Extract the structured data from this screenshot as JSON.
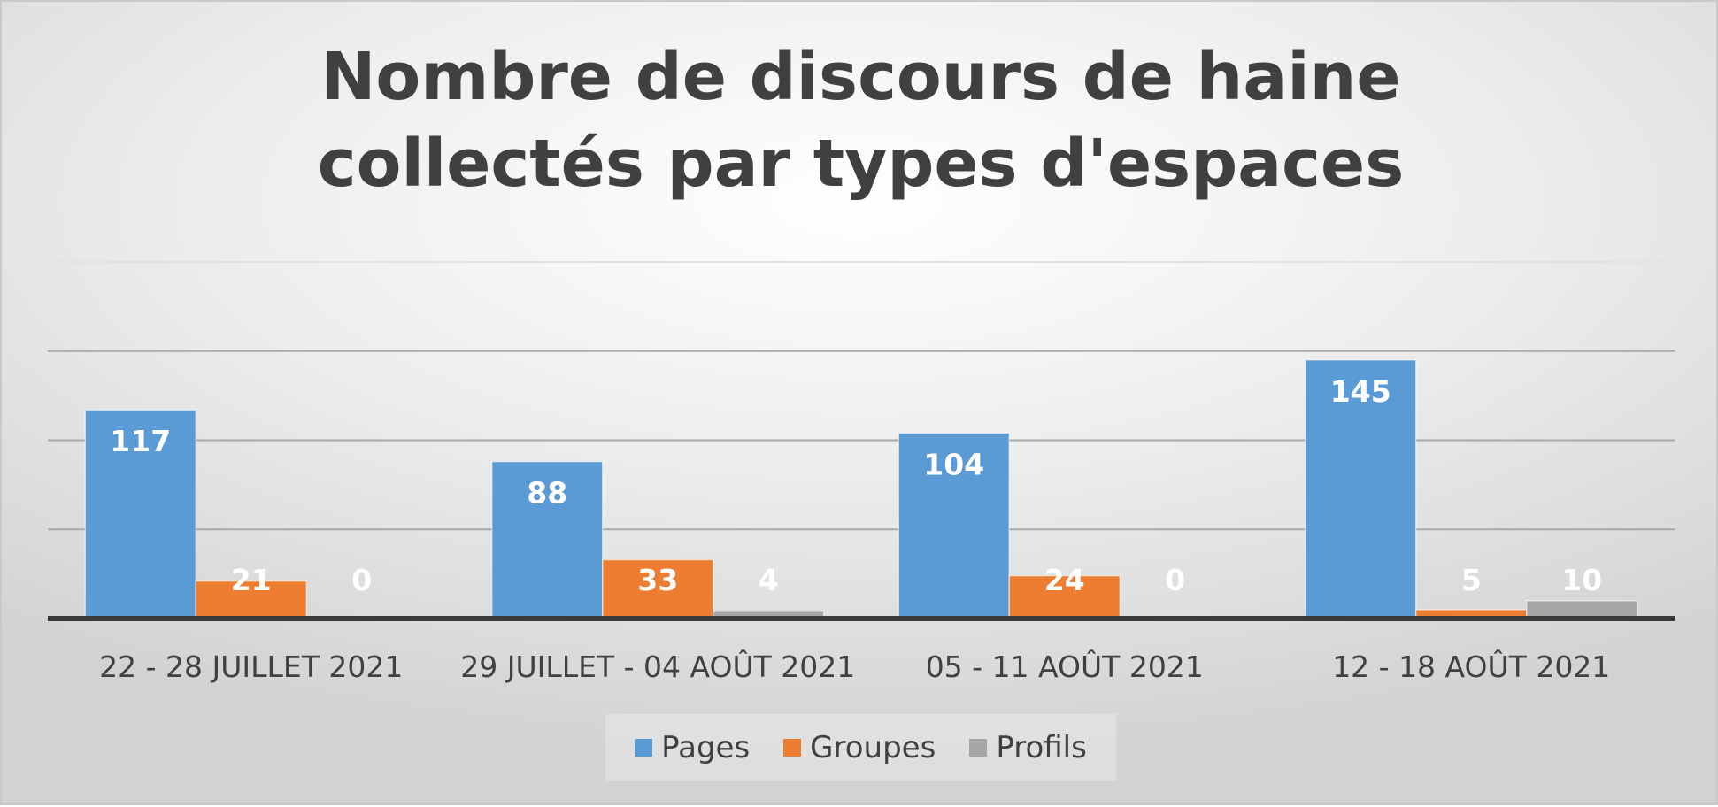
{
  "chart_data": {
    "type": "bar",
    "title": "Nombre de discours de haine collectés par types d'espaces",
    "categories": [
      "22 - 28 JUILLET 2021",
      "29 JUILLET - 04 AOÛT 2021",
      "05 - 11 AOÛT 2021",
      "12 - 18 AOÛT 2021"
    ],
    "series": [
      {
        "name": "Pages",
        "values": [
          117,
          88,
          104,
          145
        ],
        "color": "#5b9bd5"
      },
      {
        "name": "Groupes",
        "values": [
          21,
          33,
          24,
          5
        ],
        "color": "#ed7d31"
      },
      {
        "name": "Profils",
        "values": [
          0,
          4,
          0,
          10
        ],
        "color": "#a5a5a5"
      }
    ],
    "ylim": [
      0,
      200
    ],
    "y_axis_visible": false,
    "grid": true,
    "data_labels": true,
    "legend": "bottom"
  }
}
